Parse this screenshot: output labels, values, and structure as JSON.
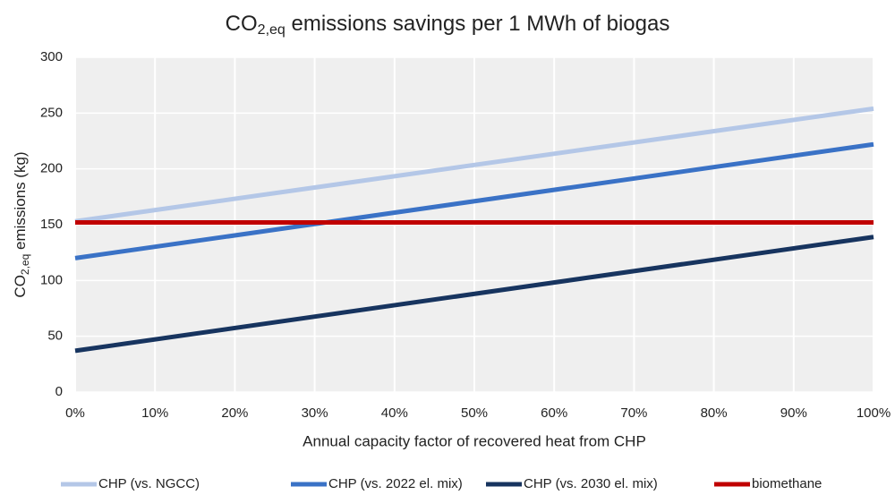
{
  "chart_data": {
    "type": "line",
    "title": {
      "main": "CO",
      "sub": "2,eq",
      "rest": " emissions savings per 1 MWh of biogas"
    },
    "xlabel": "Annual capacity factor of recovered heat from CHP",
    "ylabel": {
      "main": "CO",
      "sub": "2,eq",
      "rest": " emissions (kg)"
    },
    "x": [
      0,
      100
    ],
    "series": [
      {
        "name": "CHP (vs. NGCC)",
        "color": "#b4c7e7",
        "values": [
          153,
          254
        ]
      },
      {
        "name": "CHP (vs. 2022 el. mix)",
        "color": "#3a72c6",
        "values": [
          120,
          222
        ]
      },
      {
        "name": "CHP (vs. 2030 el. mix)",
        "color": "#17345f",
        "values": [
          37,
          139
        ]
      },
      {
        "name": "biomethane",
        "color": "#c00000",
        "values": [
          152,
          152
        ]
      }
    ],
    "xlim": [
      0,
      100
    ],
    "xticks": [
      {
        "value": 0,
        "label": "0%"
      },
      {
        "value": 10,
        "label": "10%"
      },
      {
        "value": 20,
        "label": "20%"
      },
      {
        "value": 30,
        "label": "30%"
      },
      {
        "value": 40,
        "label": "40%"
      },
      {
        "value": 50,
        "label": "50%"
      },
      {
        "value": 60,
        "label": "60%"
      },
      {
        "value": 70,
        "label": "70%"
      },
      {
        "value": 80,
        "label": "80%"
      },
      {
        "value": 90,
        "label": "90%"
      },
      {
        "value": 100,
        "label": "100%"
      }
    ],
    "ylim": [
      0,
      300
    ],
    "yticks": [
      0,
      50,
      100,
      150,
      200,
      250,
      300
    ],
    "grid": true,
    "legend": "bottom"
  }
}
